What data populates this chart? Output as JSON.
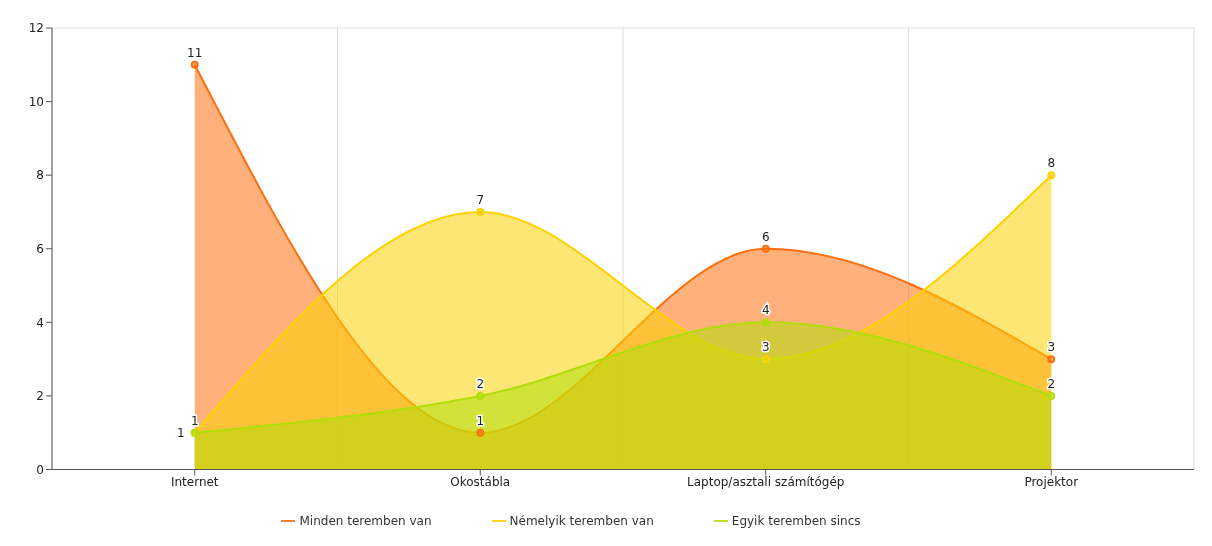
{
  "chart_data": {
    "type": "area",
    "categories": [
      "Internet",
      "Okostábla",
      "Laptop/asztali számítógép",
      "Projektor"
    ],
    "series": [
      {
        "name": "Minden teremben van",
        "color": "#ff6f0f",
        "values": [
          11,
          1,
          6,
          3
        ]
      },
      {
        "name": "Némelyik teremben van",
        "color": "#fcd202",
        "values": [
          1,
          7,
          3,
          8
        ]
      },
      {
        "name": "Egyik teremben sincs",
        "color": "#b0de09",
        "values": [
          1,
          2,
          4,
          2
        ]
      }
    ],
    "ylim": [
      0,
      12
    ],
    "yticks": [
      0,
      2,
      4,
      6,
      8,
      10,
      12
    ],
    "grid": true,
    "legend": "bottom",
    "marker": "circle",
    "data_labels": true
  }
}
